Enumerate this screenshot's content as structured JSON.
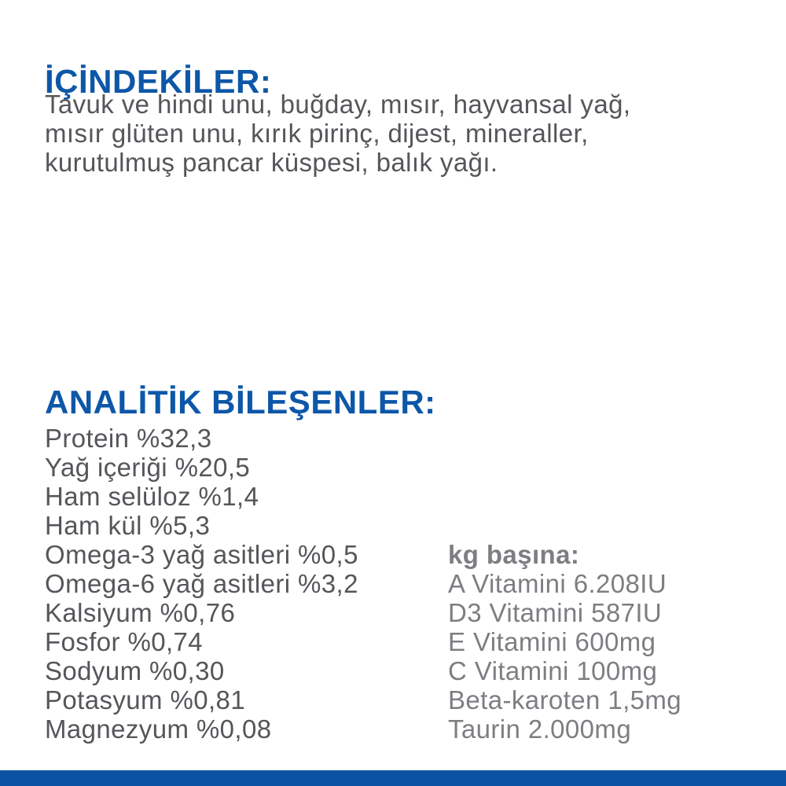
{
  "colors": {
    "heading_blue": "#0d57a8",
    "body_gray": "#55565a",
    "per_kg_gray": "#7d7e82",
    "footer_bar_blue": "#0b52a5"
  },
  "ingredients": {
    "heading": "İÇİNDEKİLER:",
    "lines": [
      "Tavuk ve hindi unu, buğday, mısır, hayvansal yağ,",
      "mısır glüten unu, kırık pirinç, dijest, mineraller,",
      "kurutulmuş pancar küspesi, balık yağı."
    ]
  },
  "analytics": {
    "heading": "ANALİTİK BİLEŞENLER:",
    "items": [
      "Protein %32,3",
      "Yağ içeriği %20,5",
      "Ham selüloz %1,4",
      "Ham kül %5,3",
      "Omega-3 yağ asitleri %0,5",
      "Omega-6 yağ asitleri %3,2",
      "Kalsiyum %0,76",
      "Fosfor %0,74",
      "Sodyum %0,30",
      "Potasyum %0,81",
      "Magnezyum %0,08"
    ]
  },
  "per_kg": {
    "heading": "kg başına:",
    "items": [
      "A Vitamini 6.208IU",
      "D3 Vitamini 587IU",
      "E Vitamini 600mg",
      "C Vitamini 100mg",
      "Beta-karoten 1,5mg",
      "Taurin 2.000mg"
    ]
  }
}
